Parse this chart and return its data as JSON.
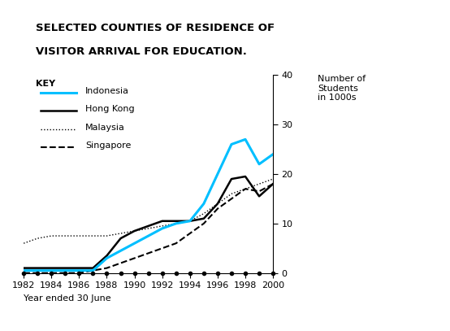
{
  "title_line1": "SELECTED COUNTIES OF RESIDENCE OF",
  "title_line2": "VISITOR ARRIVAL FOR EDUCATION.",
  "ylabel": "Number of\nStudents\nin 1000s",
  "xlabel": "Year ended 30 June",
  "ylim": [
    0,
    40
  ],
  "yticks": [
    0,
    10,
    20,
    30,
    40
  ],
  "years": [
    1982,
    1983,
    1984,
    1985,
    1986,
    1987,
    1988,
    1989,
    1990,
    1991,
    1992,
    1993,
    1994,
    1995,
    1996,
    1997,
    1998,
    1999,
    2000
  ],
  "indonesia": [
    0.5,
    0.5,
    0.5,
    0.5,
    0.5,
    0.5,
    3,
    4.5,
    6,
    7.5,
    9,
    10,
    10.5,
    14,
    20,
    26,
    27,
    22,
    24
  ],
  "hong_kong": [
    1,
    1,
    1,
    1,
    1,
    1,
    3.5,
    7,
    8.5,
    9.5,
    10.5,
    10.5,
    10.5,
    11,
    14,
    19,
    19.5,
    15.5,
    18
  ],
  "malaysia": [
    6,
    7,
    7.5,
    7.5,
    7.5,
    7.5,
    7.5,
    8,
    8.5,
    9,
    9.5,
    10,
    10.5,
    12,
    14,
    16,
    17,
    18,
    19
  ],
  "singapore": [
    0,
    0,
    0,
    0,
    0,
    0.5,
    1,
    2,
    3,
    4,
    5,
    6,
    8,
    10,
    13,
    15,
    17,
    16.5,
    18
  ],
  "color_indonesia": "#00bfff",
  "color_hong_kong": "#000000",
  "color_malaysia": "#000000",
  "color_singapore": "#000000",
  "background_color": "#ffffff"
}
